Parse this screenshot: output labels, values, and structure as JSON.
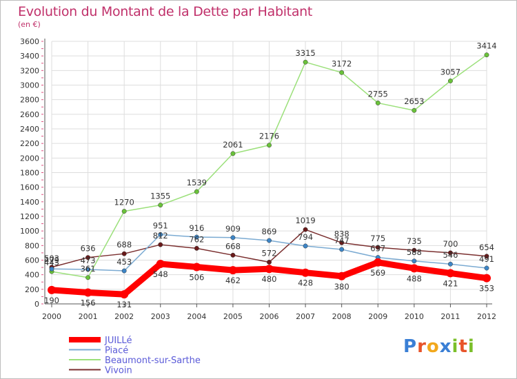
{
  "title": "Evolution du Montant de la Dette par Habitant",
  "unit": "(en €)",
  "logo_letters": [
    "P",
    "r",
    "o",
    "x",
    "i",
    "t",
    "i"
  ],
  "logo_colors": [
    "#3a7fd5",
    "#e8542a",
    "#f2a81c",
    "#3a7fd5",
    "#7bbf2a",
    "#e8542a",
    "#7bbf2a"
  ],
  "chart_data": {
    "type": "line",
    "title": "Evolution du Montant de la Dette par Habitant",
    "ylabel": "(en €)",
    "xlabel": "",
    "x": [
      "2000",
      "2001",
      "2002",
      "2003",
      "2004",
      "2005",
      "2006",
      "2007",
      "2008",
      "2009",
      "2010",
      "2011",
      "2012"
    ],
    "ylim": [
      0,
      3600
    ],
    "yticks": [
      "0",
      "200",
      "400",
      "600",
      "800",
      "1000",
      "1200",
      "1400",
      "1600",
      "1800",
      "2000",
      "2200",
      "2400",
      "2600",
      "2800",
      "3000",
      "3200",
      "3400",
      "3600"
    ],
    "grid": true,
    "legend_position": "bottom-left",
    "series": [
      {
        "name": "Vivoin",
        "color": "#7a2e2e",
        "dot": "#6a1a1a",
        "width": 1.5,
        "values": [
          503,
          636,
          688,
          812,
          762,
          668,
          572,
          1019,
          838,
          775,
          735,
          700,
          654
        ],
        "labels": [
          "503",
          "636",
          "688",
          "812",
          "762",
          "668",
          "572",
          "1019",
          "838",
          "775",
          "735",
          "700",
          "654"
        ]
      },
      {
        "name": "Beaumont-sur-Sarthe",
        "color": "#9be07a",
        "dot": "#6ac23a",
        "width": 1.5,
        "values": [
          443,
          361,
          1270,
          1355,
          1539,
          2061,
          2176,
          3315,
          3172,
          2755,
          2653,
          3057,
          3414
        ],
        "labels": [
          "443",
          "361",
          "1270",
          "1355",
          "1539",
          "2061",
          "2176",
          "3315",
          "3172",
          "2755",
          "2653",
          "3057",
          "3414"
        ]
      },
      {
        "name": "Piacé",
        "color": "#7aaad2",
        "dot": "#3d85c6",
        "width": 1.5,
        "values": [
          479,
          473,
          453,
          951,
          916,
          909,
          869,
          794,
          747,
          637,
          588,
          546,
          491
        ],
        "labels": [
          "479",
          "473",
          "453",
          "951",
          "916",
          "909",
          "869",
          "794",
          "747",
          "637",
          "588",
          "546",
          "491"
        ]
      },
      {
        "name": "JUILLé",
        "color": "#ff0000",
        "dot": "#ff0000",
        "width": 9,
        "values": [
          190,
          156,
          131,
          548,
          506,
          462,
          480,
          428,
          380,
          569,
          488,
          421,
          353
        ],
        "labels": [
          "190",
          "156",
          "131",
          "548",
          "506",
          "462",
          "480",
          "428",
          "380",
          "569",
          "488",
          "421",
          "353"
        ]
      }
    ],
    "legend": [
      "JUILLé",
      "Piacé",
      "Beaumont-sur-Sarthe",
      "Vivoin"
    ]
  }
}
